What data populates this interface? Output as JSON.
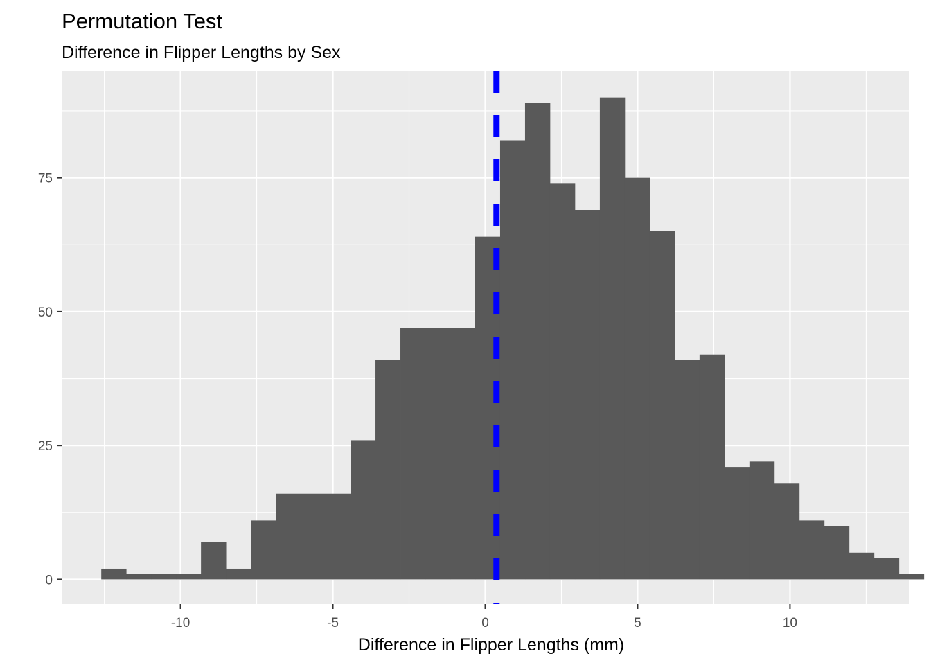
{
  "chart_data": {
    "type": "bar",
    "title": "Permutation Test",
    "subtitle": "Difference in Flipper Lengths by Sex",
    "xlabel": "Difference in Flipper Lengths (mm)",
    "ylabel": "",
    "xlim": [
      -13.9,
      13.9
    ],
    "ylim": [
      -4.6,
      95
    ],
    "x_major_ticks": [
      -10,
      -5,
      0,
      5,
      10
    ],
    "x_tick_labels": [
      "-10",
      "-5",
      "0",
      "5",
      "10"
    ],
    "x_minor_ticks": [
      -12.5,
      -7.5,
      -2.5,
      2.5,
      7.5,
      12.5
    ],
    "y_major_ticks": [
      0,
      25,
      50,
      75
    ],
    "y_tick_labels": [
      "0",
      "25",
      "50",
      "75"
    ],
    "y_minor_ticks": [
      12.5,
      37.5,
      62.5,
      87.5
    ],
    "bin_start": -12.6,
    "bin_width": 0.818,
    "counts": [
      2,
      1,
      1,
      1,
      7,
      2,
      11,
      16,
      16,
      16,
      26,
      41,
      47,
      47,
      47,
      64,
      82,
      89,
      74,
      69,
      90,
      75,
      65,
      41,
      42,
      21,
      22,
      18,
      11,
      10,
      5,
      4,
      1
    ],
    "bar_color": "#595959",
    "panel_background": "#ebebeb",
    "grid": true,
    "observed_line": {
      "x": 0.37,
      "color": "#0000ff",
      "style": "dashed"
    }
  }
}
